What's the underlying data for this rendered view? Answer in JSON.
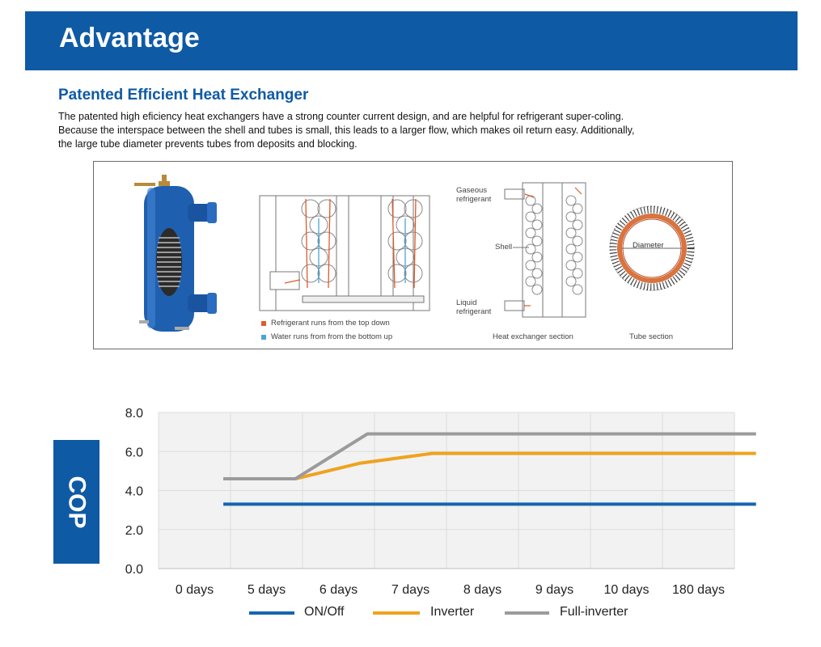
{
  "header": {
    "title": "Advantage"
  },
  "section": {
    "title": "Patented Efficient Heat Exchanger",
    "lines": [
      "The patented high eficiency heat exchangers have a strong counter current design, and are helpful for refrigerant super-coling.",
      "Because the interspace between the shell and tubes is small, this leads to a larger flow, which makes oil return easy. Additionally,",
      "the large tube diameter prevents tubes from deposits and blocking."
    ]
  },
  "figure": {
    "legend_refrigerant": "Refrigerant runs from the top down",
    "legend_water": "Water runs from from the bottom up",
    "gaseous": [
      "Gaseous",
      "refrigerant"
    ],
    "shell": "Shell",
    "liquid": [
      "Liquid",
      "refrigerant"
    ],
    "section_caption": "Heat exchanger section",
    "diameter": "Diameter",
    "tube_caption": "Tube section",
    "colors": {
      "refrigerant": "#e05a2b",
      "water": "#4aa3d8",
      "tube": "#d9733f"
    }
  },
  "cop_label": "COP",
  "chart_data": {
    "type": "line",
    "categories": [
      "0 days",
      "5 days",
      "6 days",
      "7 days",
      "8 days",
      "9 days",
      "10 days",
      "180 days"
    ],
    "y_ticks": [
      "8.0",
      "6.0",
      "4.0",
      "2.0",
      "0.0"
    ],
    "ylim": [
      0,
      8
    ],
    "ylabel": "COP",
    "grid": true,
    "legend_position": "bottom",
    "series": [
      {
        "name": "ON/Off",
        "color": "#1565b0",
        "points": [
          [
            0.4,
            3.3
          ],
          [
            7.8,
            3.3
          ]
        ]
      },
      {
        "name": "Inverter",
        "color": "#f0a21e",
        "points": [
          [
            0.4,
            4.6
          ],
          [
            1.4,
            4.6
          ],
          [
            2.3,
            5.4
          ],
          [
            3.3,
            5.9
          ],
          [
            7.8,
            5.9
          ]
        ]
      },
      {
        "name": "Full-inverter",
        "color": "#9b9b9b",
        "points": [
          [
            0.4,
            4.6
          ],
          [
            1.4,
            4.6
          ],
          [
            2.4,
            6.9
          ],
          [
            7.8,
            6.9
          ]
        ]
      }
    ]
  }
}
